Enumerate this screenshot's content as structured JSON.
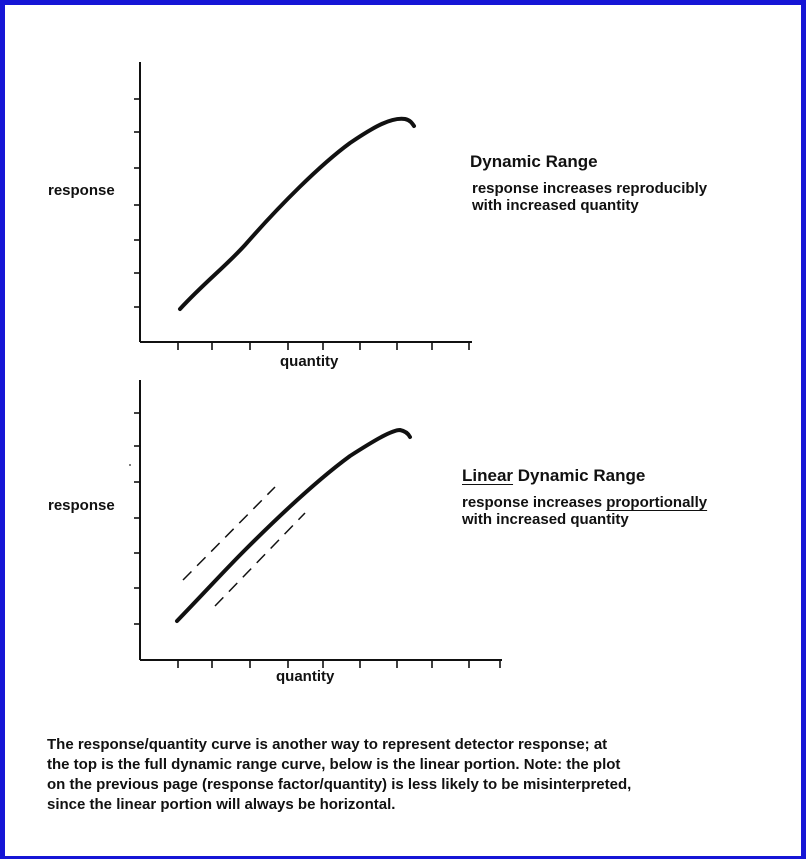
{
  "panels": [
    {
      "ylabel": "response",
      "xlabel": "quantity",
      "title": "Dynamic Range",
      "description_lines": [
        "response increases reproducibly",
        "with  increased quantity"
      ]
    },
    {
      "ylabel": "response",
      "xlabel": "quantity",
      "title_underlined": "Linear",
      "title_rest": " Dynamic Range",
      "description_line1_plain": "response increases ",
      "description_line1_underlined": "proportionally",
      "description_line2": "with  increased quantity"
    }
  ],
  "caption_lines": [
    "The response/quantity curve is another way to represent detector response; at",
    "the top is the full dynamic range curve,  below is the linear portion.  Note:  the plot",
    "on the previous page (response factor/quantity) is less likely to be misinterpreted,",
    "since the linear portion will always be horizontal."
  ],
  "colors": {
    "frame": "#1515d6",
    "ink": "#111111"
  }
}
